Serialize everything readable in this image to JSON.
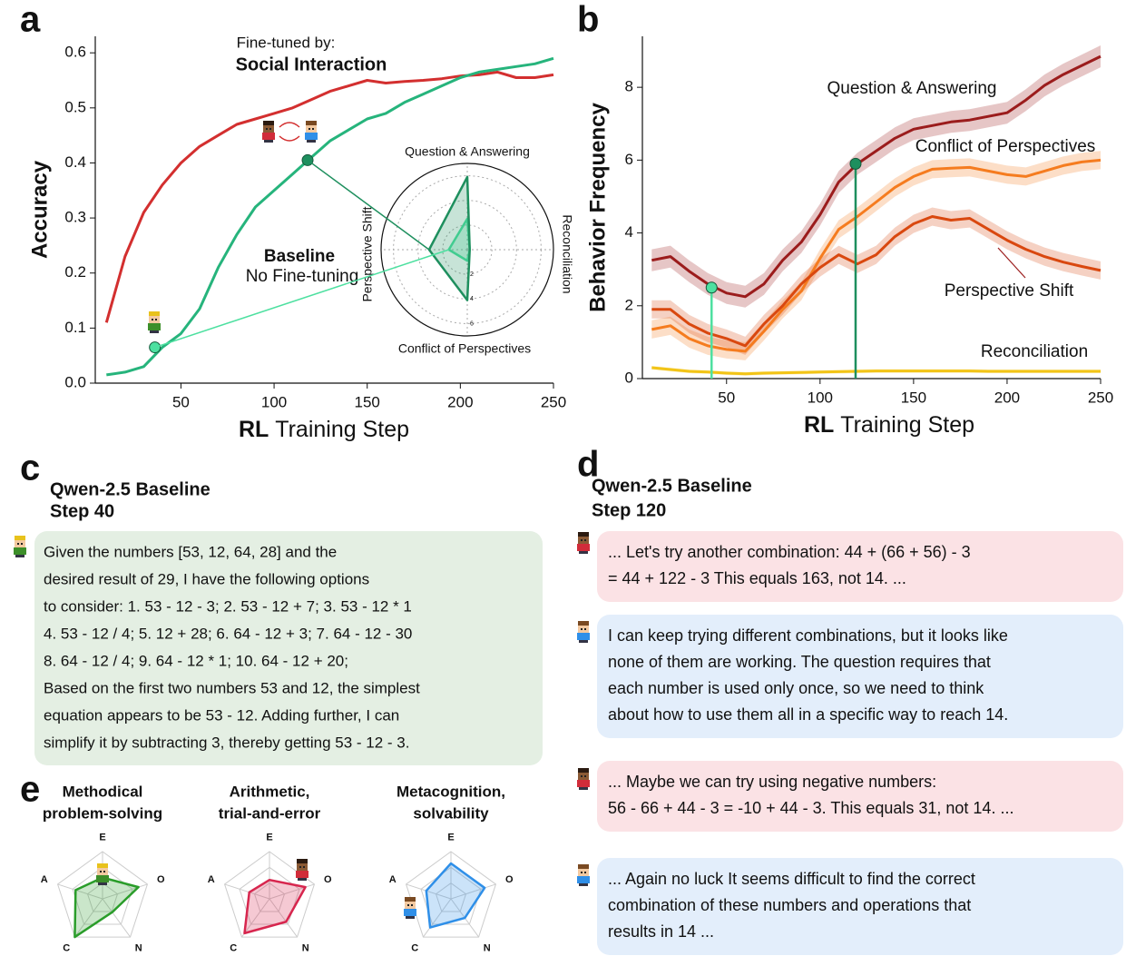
{
  "panel_labels": [
    "a",
    "b",
    "c",
    "d",
    "e"
  ],
  "chart_data": [
    {
      "type": "line",
      "ylabel": "Accuracy",
      "xlabel_bold": "RL",
      "xlabel": "Training Step",
      "xlim": [
        4,
        250
      ],
      "xticks": [
        50,
        100,
        150,
        200,
        250
      ],
      "ylim": [
        0,
        0.63
      ],
      "yticks": [
        {
          "value": 0,
          "label": "0.0"
        },
        0.1,
        0.2,
        0.3,
        0.4,
        0.5,
        0.6
      ],
      "x": [
        10,
        20,
        30,
        40,
        50,
        60,
        70,
        80,
        90,
        100,
        110,
        120,
        130,
        140,
        150,
        160,
        170,
        180,
        190,
        200,
        210,
        220,
        230,
        240,
        250
      ],
      "series": [
        {
          "name": "Social Interaction",
          "color": "#d32f2f",
          "values": [
            0.11,
            0.23,
            0.31,
            0.36,
            0.4,
            0.43,
            0.45,
            0.47,
            0.48,
            0.49,
            0.5,
            0.515,
            0.53,
            0.54,
            0.55,
            0.545,
            0.548,
            0.55,
            0.553,
            0.558,
            0.56,
            0.565,
            0.555,
            0.555,
            0.56
          ]
        },
        {
          "name": "Baseline",
          "color": "#26b47c",
          "values": [
            0.015,
            0.02,
            0.03,
            0.065,
            0.09,
            0.135,
            0.21,
            0.27,
            0.32,
            0.35,
            0.38,
            0.41,
            0.44,
            0.46,
            0.48,
            0.49,
            0.51,
            0.525,
            0.54,
            0.555,
            0.565,
            0.57,
            0.575,
            0.58,
            0.59
          ]
        }
      ],
      "annotations": [
        "Fine-tuned by:",
        "No Fine-tuning"
      ],
      "markers": [
        {
          "x": 36,
          "y": 0.065,
          "color": "#4de0a0"
        },
        {
          "x": 118,
          "y": 0.405,
          "color": "#1e8f5e"
        }
      ]
    },
    {
      "type": "radar",
      "axes": [
        "Question & Answering",
        "Reconciliation",
        "Conflict of Perspectives",
        "Perspective Shift"
      ],
      "rlim": [
        0,
        7
      ],
      "rticks": [
        2,
        4,
        6
      ],
      "series": [
        {
          "color": "#4de0a0",
          "values": [
            2.5,
            0.2,
            0.9,
            1.5
          ]
        },
        {
          "color": "#1e8f5e",
          "values": [
            5.9,
            0.2,
            4.1,
            3.1
          ]
        }
      ]
    },
    {
      "type": "line",
      "ylabel": "Behavior Frequency",
      "xlabel_bold": "RL",
      "xlabel": "Training Step",
      "xlim": [
        5,
        250
      ],
      "xticks": [
        50,
        100,
        150,
        200,
        250
      ],
      "ylim": [
        0,
        9.4
      ],
      "yticks": [
        0,
        2,
        4,
        6,
        8
      ],
      "x": [
        10,
        20,
        30,
        40,
        50,
        60,
        70,
        80,
        90,
        100,
        110,
        120,
        130,
        140,
        150,
        160,
        170,
        180,
        190,
        200,
        210,
        220,
        230,
        240,
        250
      ],
      "series": [
        {
          "name": "Question & Answering",
          "color": "#9b1c1c",
          "spread": 0.3,
          "values": [
            3.25,
            3.35,
            2.95,
            2.6,
            2.35,
            2.25,
            2.6,
            3.25,
            3.75,
            4.5,
            5.4,
            5.9,
            6.25,
            6.6,
            6.85,
            6.95,
            7.05,
            7.1,
            7.2,
            7.3,
            7.65,
            8.05,
            8.35,
            8.6,
            8.85
          ]
        },
        {
          "name": "Conflict of Perspectives",
          "color": "#f57c1f",
          "spread": 0.25,
          "values": [
            1.35,
            1.45,
            1.1,
            0.9,
            0.8,
            0.75,
            1.3,
            1.9,
            2.4,
            3.3,
            4.1,
            4.45,
            4.85,
            5.25,
            5.55,
            5.75,
            5.78,
            5.8,
            5.7,
            5.6,
            5.55,
            5.7,
            5.85,
            5.95,
            6.0
          ]
        },
        {
          "name": "Perspective Shift",
          "color": "#d9480f",
          "spread": 0.25,
          "values": [
            1.9,
            1.9,
            1.5,
            1.25,
            1.1,
            0.9,
            1.5,
            2.0,
            2.6,
            3.05,
            3.4,
            3.15,
            3.4,
            3.9,
            4.25,
            4.45,
            4.35,
            4.4,
            4.1,
            3.8,
            3.55,
            3.35,
            3.2,
            3.08,
            2.97
          ]
        },
        {
          "name": "Reconciliation",
          "color": "#f2c417",
          "spread": 0.05,
          "values": [
            0.3,
            0.25,
            0.2,
            0.18,
            0.15,
            0.13,
            0.15,
            0.16,
            0.17,
            0.18,
            0.19,
            0.2,
            0.21,
            0.21,
            0.21,
            0.21,
            0.21,
            0.21,
            0.2,
            0.2,
            0.2,
            0.2,
            0.2,
            0.2,
            0.2
          ]
        }
      ],
      "markers": [
        {
          "x": 42,
          "y": 2.5,
          "color": "#4de0a0"
        },
        {
          "x": 119,
          "y": 5.9,
          "color": "#1e8f5e"
        }
      ]
    },
    {
      "type": "radar",
      "title_lines": [
        "Methodical",
        "problem-solving"
      ],
      "axes": [
        "E",
        "O",
        "N",
        "C",
        "A"
      ],
      "rlim": [
        0,
        1
      ],
      "series": [
        {
          "color": "#2a9d2a",
          "values": [
            0.45,
            0.8,
            0.35,
            1.0,
            0.6
          ]
        }
      ]
    },
    {
      "type": "radar",
      "title_lines": [
        "Arithmetic,",
        "trial-and-error"
      ],
      "axes": [
        "E",
        "O",
        "N",
        "C",
        "A"
      ],
      "rlim": [
        0,
        1
      ],
      "series": [
        {
          "color": "#d7264e",
          "values": [
            0.4,
            0.8,
            0.6,
            0.9,
            0.45
          ]
        }
      ]
    },
    {
      "type": "radar",
      "title_lines": [
        "Metacognition,",
        "solvability"
      ],
      "axes": [
        "E",
        "O",
        "N",
        "C",
        "A"
      ],
      "rlim": [
        0,
        1
      ],
      "series": [
        {
          "color": "#2f8fe8",
          "values": [
            0.75,
            0.75,
            0.5,
            0.75,
            0.55
          ]
        }
      ]
    }
  ],
  "panel_c": {
    "title_lines": [
      "Qwen-2.5 Baseline",
      "Step 40"
    ],
    "lines": [
      "Given the numbers [53, 12, 64, 28] and the",
      "desired result of 29, I have the following options",
      "to consider: 1. 53 - 12 - 3; 2. 53 - 12 + 7; 3. 53 - 12 * 1",
      "4. 53 - 12 / 4; 5. 12 + 28; 6. 64 - 12 + 3; 7. 64 - 12 - 30",
      "8. 64 - 12 / 4; 9. 64 - 12 * 1; 10. 64 - 12 + 20;",
      "Based on the first two numbers 53 and 12, the simplest",
      "equation appears to be 53 - 12.  Adding further, I can",
      "simplify it by subtracting 3, thereby getting 53 - 12 - 3."
    ]
  },
  "panel_d": {
    "title_lines": [
      "Qwen-2.5 Baseline",
      "Step 120"
    ],
    "messages": [
      {
        "lines": [
          "... Let's try another combination: 44 + (66 + 56) - 3",
          "= 44 + 122 - 3  This equals 163, not 14. ..."
        ]
      },
      {
        "lines": [
          "I can keep trying different combinations, but it looks like",
          "none of them are working. The question requires that",
          "each number is used only once, so we need to think",
          "about how to use them all in a specific way to reach 14."
        ]
      },
      {
        "lines": [
          "... Maybe we can try using negative numbers:",
          "56 - 66 + 44 - 3 = -10 + 44 - 3. This equals 31, not 14. ..."
        ]
      },
      {
        "lines": [
          "... Again  no luck  It seems difficult to find the correct",
          "combination of these numbers and operations that",
          "results in 14 ..."
        ]
      }
    ]
  }
}
